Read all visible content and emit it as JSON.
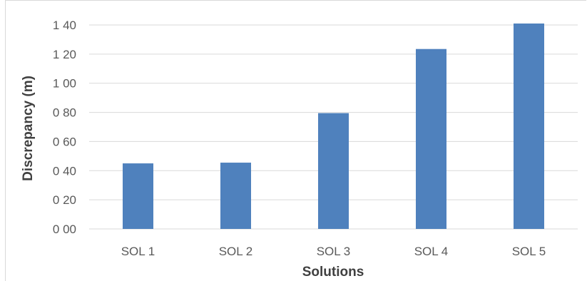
{
  "chart_data": {
    "type": "bar",
    "title": "",
    "xlabel": "Solutions",
    "ylabel": "Discrepancy (m)",
    "categories": [
      "SOL 1",
      "SOL 2",
      "SOL 3",
      "SOL 4",
      "SOL 5"
    ],
    "values": [
      0.45,
      0.455,
      0.795,
      1.235,
      1.41
    ],
    "ylim": [
      0,
      1.4
    ],
    "yticks": [
      0,
      0.2,
      0.4,
      0.6,
      0.8,
      1.0,
      1.2,
      1.4
    ],
    "ytick_labels": [
      "0 00",
      "0 20",
      "0 40",
      "0 60",
      "0 80",
      "1 00",
      "1 20",
      "1 40"
    ],
    "grid": true,
    "legend": "none",
    "bar_color": "#4f81bd",
    "grid_color": "#d9d9d9"
  }
}
